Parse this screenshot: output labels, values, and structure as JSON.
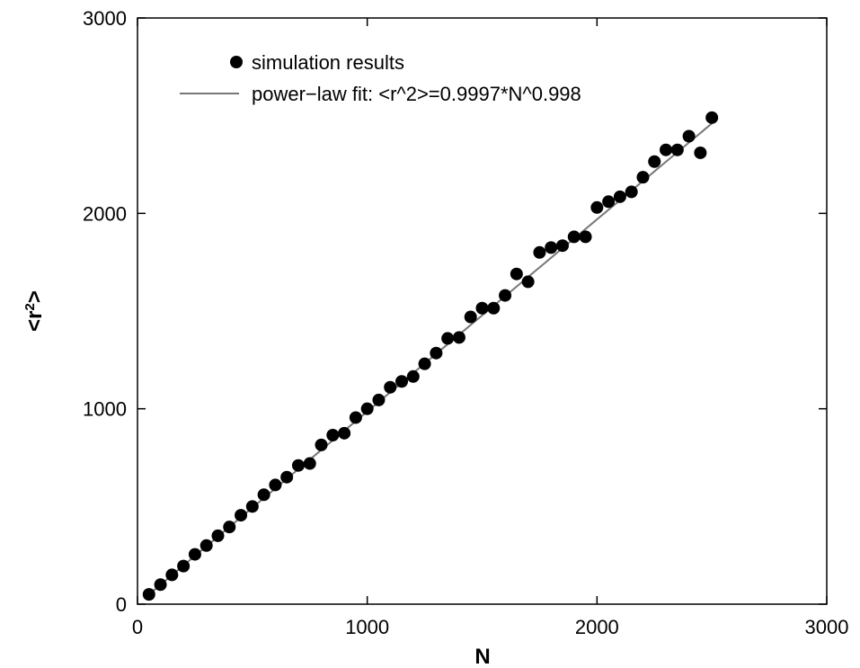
{
  "chart_data": {
    "type": "scatter",
    "title": "",
    "xlabel": "N",
    "ylabel_parts": {
      "open": "<r",
      "sup": "2",
      "close": ">"
    },
    "xlim": [
      0,
      3000
    ],
    "ylim": [
      0,
      3000
    ],
    "xticks": [
      0,
      1000,
      2000,
      3000
    ],
    "yticks": [
      0,
      1000,
      2000,
      3000
    ],
    "xtick_labels": [
      "0",
      "1000",
      "2000",
      "3000"
    ],
    "ytick_labels": [
      "0",
      "1000",
      "2000",
      "3000"
    ],
    "grid": false,
    "legend_position": "top-left",
    "series": [
      {
        "name": "simulation results",
        "kind": "scatter",
        "color": "#000000",
        "points": [
          [
            50,
            50
          ],
          [
            100,
            100
          ],
          [
            150,
            150
          ],
          [
            200,
            195
          ],
          [
            250,
            255
          ],
          [
            300,
            300
          ],
          [
            350,
            350
          ],
          [
            400,
            395
          ],
          [
            450,
            455
          ],
          [
            500,
            500
          ],
          [
            550,
            560
          ],
          [
            600,
            610
          ],
          [
            650,
            650
          ],
          [
            700,
            710
          ],
          [
            750,
            720
          ],
          [
            800,
            815
          ],
          [
            850,
            865
          ],
          [
            900,
            875
          ],
          [
            950,
            955
          ],
          [
            1000,
            1000
          ],
          [
            1050,
            1045
          ],
          [
            1100,
            1110
          ],
          [
            1150,
            1140
          ],
          [
            1200,
            1165
          ],
          [
            1250,
            1230
          ],
          [
            1300,
            1285
          ],
          [
            1350,
            1360
          ],
          [
            1400,
            1365
          ],
          [
            1450,
            1470
          ],
          [
            1500,
            1515
          ],
          [
            1550,
            1515
          ],
          [
            1600,
            1580
          ],
          [
            1650,
            1690
          ],
          [
            1700,
            1650
          ],
          [
            1750,
            1800
          ],
          [
            1800,
            1825
          ],
          [
            1850,
            1835
          ],
          [
            1900,
            1880
          ],
          [
            1950,
            1880
          ],
          [
            2000,
            2030
          ],
          [
            2050,
            2060
          ],
          [
            2100,
            2085
          ],
          [
            2150,
            2110
          ],
          [
            2200,
            2185
          ],
          [
            2250,
            2265
          ],
          [
            2300,
            2325
          ],
          [
            2350,
            2325
          ],
          [
            2400,
            2395
          ],
          [
            2450,
            2310
          ],
          [
            2500,
            2490
          ]
        ]
      },
      {
        "name": "power−law fit: <r^2>=0.9997*N^0.998",
        "kind": "line",
        "color": "#777777",
        "fit": {
          "a": 0.9997,
          "b": 0.998,
          "x_range": [
            50,
            2500
          ]
        }
      }
    ]
  }
}
